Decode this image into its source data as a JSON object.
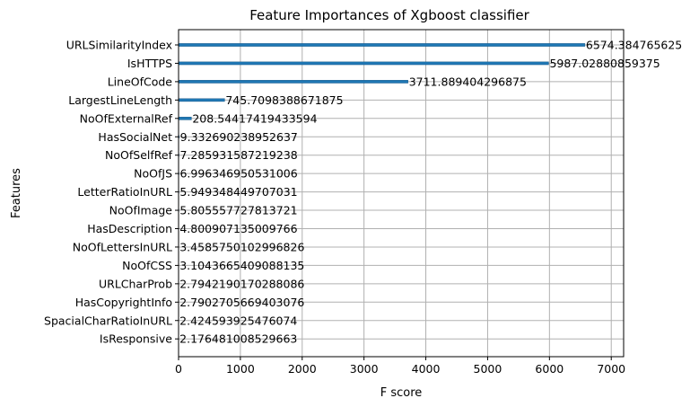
{
  "chart_data": {
    "type": "bar",
    "orientation": "horizontal",
    "title": "Feature Importances of Xgboost classifier",
    "xlabel": "F score",
    "ylabel": "Features",
    "xlim": [
      0,
      7200
    ],
    "xticks": [
      0,
      1000,
      2000,
      3000,
      4000,
      5000,
      6000,
      7000
    ],
    "grid": true,
    "bar_color": "#1f77b4",
    "categories": [
      "URLSimilarityIndex",
      "IsHTTPS",
      "LineOfCode",
      "LargestLineLength",
      "NoOfExternalRef",
      "HasSocialNet",
      "NoOfSelfRef",
      "NoOfJS",
      "LetterRatioInURL",
      "NoOfImage",
      "HasDescription",
      "NoOfLettersInURL",
      "NoOfCSS",
      "URLCharProb",
      "HasCopyrightInfo",
      "SpacialCharRatioInURL",
      "IsResponsive"
    ],
    "values": [
      6574.384765625,
      5987.02880859375,
      3711.889404296875,
      745.7098388671875,
      208.54417419433594,
      9.332690238952637,
      7.285931587219238,
      6.996346950531006,
      5.949348449707031,
      5.805557727813721,
      4.800907135009766,
      3.4585750102996826,
      3.1043665409088135,
      2.7942190170288086,
      2.7902705669403076,
      2.424593925476074,
      2.176481008529663
    ],
    "data_labels": [
      "6574.384765625",
      "5987.02880859375",
      "3711.889404296875",
      "745.7098388671875",
      "208.54417419433594",
      "9.332690238952637",
      "7.285931587219238",
      "6.996346950531006",
      "5.949348449707031",
      "5.805557727813721",
      "4.800907135009766",
      "3.4585750102996826",
      "3.1043665409088135",
      "2.7942190170288086",
      "2.7902705669403076",
      "2.424593925476074",
      "2.176481008529663"
    ]
  }
}
